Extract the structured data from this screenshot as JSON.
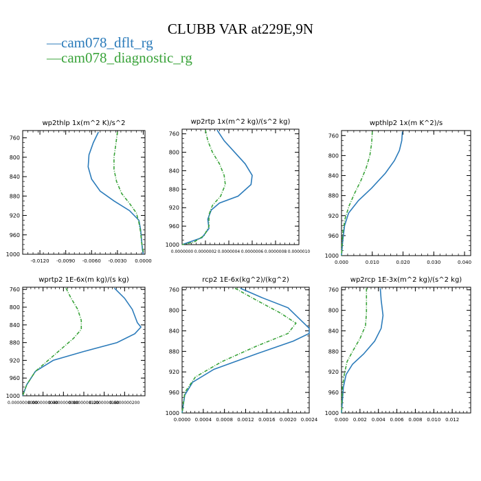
{
  "title": "CLUBB VAR at229E,9N",
  "legend": [
    {
      "name": "cam078_dflt_rg",
      "color": "#2b7bba"
    },
    {
      "name": "cam078_diagnostic_rg",
      "color": "#3aa33a"
    }
  ],
  "chart_data": [
    {
      "type": "line",
      "title": "wp2thlp  1x(m^2 K)/s^2",
      "ylim": [
        1000,
        745
      ],
      "yticks": [
        760,
        800,
        840,
        880,
        920,
        960,
        1000
      ],
      "xlim": [
        -0.014,
        0.0002
      ],
      "xticks": [
        "-0.0120",
        "-0.0090",
        "-0.0060",
        "-0.0030",
        "0.0000"
      ],
      "xtick_values": [
        -0.012,
        -0.009,
        -0.006,
        -0.003,
        0.0
      ],
      "series": [
        {
          "name": "cam078_dflt_rg",
          "points": [
            [
              -0.0052,
              748
            ],
            [
              -0.0058,
              770
            ],
            [
              -0.0063,
              795
            ],
            [
              -0.0064,
              820
            ],
            [
              -0.006,
              845
            ],
            [
              -0.005,
              870
            ],
            [
              -0.0034,
              890
            ],
            [
              -0.0016,
              910
            ],
            [
              -0.0005,
              930
            ],
            [
              -0.0003,
              950
            ],
            [
              -0.0002,
              970
            ],
            [
              -0.0001,
              990
            ],
            [
              0.0,
              1000
            ]
          ]
        },
        {
          "name": "cam078_diagnostic_rg",
          "points": [
            [
              -0.003,
              748
            ],
            [
              -0.0032,
              775
            ],
            [
              -0.0034,
              800
            ],
            [
              -0.0034,
              825
            ],
            [
              -0.0031,
              850
            ],
            [
              -0.0025,
              875
            ],
            [
              -0.0016,
              895
            ],
            [
              -0.0008,
              915
            ],
            [
              -0.0005,
              935
            ],
            [
              -0.0003,
              955
            ],
            [
              -0.0002,
              975
            ],
            [
              0.0,
              995
            ]
          ]
        }
      ]
    },
    {
      "type": "line",
      "title": "wp2rtp  1x(m^2 kg)/(s^2 kg)",
      "ylim": [
        1000,
        750
      ],
      "yticks": [
        760,
        800,
        840,
        880,
        920,
        960,
        1000
      ],
      "xlim": [
        0.0,
        1e-06
      ],
      "xticks": [
        "0.0000000",
        "0.0000002",
        "0.0000004",
        "0.0000006",
        "0.0000008",
        "0.0000010"
      ],
      "xtick_values": [
        0.0,
        2e-07,
        4e-07,
        6e-07,
        8e-07,
        1e-06
      ],
      "series": [
        {
          "name": "cam078_dflt_rg",
          "points": [
            [
              3e-07,
              752
            ],
            [
              3.6e-07,
              775
            ],
            [
              4.5e-07,
              800
            ],
            [
              5.4e-07,
              825
            ],
            [
              6e-07,
              850
            ],
            [
              5.9e-07,
              870
            ],
            [
              4.8e-07,
              895
            ],
            [
              3.2e-07,
              910
            ],
            [
              2.5e-07,
              925
            ],
            [
              2.2e-07,
              945
            ],
            [
              2.3e-07,
              965
            ],
            [
              1.7e-07,
              985
            ],
            [
              0.0,
              1000
            ]
          ]
        },
        {
          "name": "cam078_diagnostic_rg",
          "points": [
            [
              2e-07,
              752
            ],
            [
              2.2e-07,
              775
            ],
            [
              2.6e-07,
              800
            ],
            [
              3.2e-07,
              825
            ],
            [
              3.6e-07,
              850
            ],
            [
              3.7e-07,
              870
            ],
            [
              3.3e-07,
              895
            ],
            [
              2.6e-07,
              915
            ],
            [
              2.3e-07,
              935
            ],
            [
              2.3e-07,
              960
            ],
            [
              1.9e-07,
              980
            ],
            [
              1e-07,
              995
            ],
            [
              0.0,
              1000
            ]
          ]
        }
      ]
    },
    {
      "type": "line",
      "title": "wpthlp2  1x(m K^2)/s",
      "ylim": [
        1000,
        750
      ],
      "yticks": [
        760,
        800,
        840,
        880,
        920,
        960,
        1000
      ],
      "xlim": [
        0.0,
        0.042
      ],
      "xticks": [
        "0.000",
        "0.010",
        "0.020",
        "0.030",
        "0.040"
      ],
      "xtick_values": [
        0.0,
        0.01,
        0.02,
        0.03,
        0.04
      ],
      "series": [
        {
          "name": "cam078_dflt_rg",
          "points": [
            [
              0.0198,
              752
            ],
            [
              0.0196,
              770
            ],
            [
              0.0188,
              790
            ],
            [
              0.0172,
              810
            ],
            [
              0.0143,
              835
            ],
            [
              0.0098,
              865
            ],
            [
              0.0055,
              890
            ],
            [
              0.0023,
              915
            ],
            [
              0.001,
              940
            ],
            [
              0.0004,
              970
            ],
            [
              0.0,
              1000
            ]
          ]
        },
        {
          "name": "cam078_diagnostic_rg",
          "points": [
            [
              0.01,
              752
            ],
            [
              0.0098,
              775
            ],
            [
              0.0092,
              800
            ],
            [
              0.008,
              825
            ],
            [
              0.0063,
              850
            ],
            [
              0.0043,
              875
            ],
            [
              0.0025,
              900
            ],
            [
              0.0012,
              925
            ],
            [
              0.0005,
              950
            ],
            [
              0.0002,
              975
            ],
            [
              0.0,
              1000
            ]
          ]
        }
      ]
    },
    {
      "type": "line",
      "title": "wprtp2  1E-6x(m kg)/(s kg)",
      "ylim": [
        1000,
        755
      ],
      "yticks": [
        760,
        800,
        840,
        880,
        920,
        960,
        1000
      ],
      "xlim": [
        0.0,
        2.4e-08
      ],
      "xticks": [
        "0.0000000000",
        "0.0000000040",
        "0.0000000080",
        "0.0000000120",
        "0.0000000160",
        "0.0000000200"
      ],
      "xtick_values": [
        0.0,
        4e-09,
        8e-09,
        1.2e-08,
        1.6e-08,
        2e-08
      ],
      "series": [
        {
          "name": "cam078_dflt_rg",
          "points": [
            [
              1.8e-08,
              757
            ],
            [
              2e-08,
              780
            ],
            [
              2.15e-08,
              805
            ],
            [
              2.25e-08,
              835
            ],
            [
              2.32e-08,
              845
            ],
            [
              2.2e-08,
              860
            ],
            [
              1.85e-08,
              880
            ],
            [
              1.2e-08,
              900
            ],
            [
              6e-09,
              920
            ],
            [
              2.5e-09,
              945
            ],
            [
              8e-10,
              975
            ],
            [
              0.0,
              1000
            ]
          ]
        },
        {
          "name": "cam078_diagnostic_rg",
          "points": [
            [
              8.5e-09,
              757
            ],
            [
              9.5e-09,
              780
            ],
            [
              1.08e-08,
              805
            ],
            [
              1.15e-08,
              830
            ],
            [
              1.15e-08,
              850
            ],
            [
              1e-08,
              870
            ],
            [
              7.5e-09,
              895
            ],
            [
              5e-09,
              920
            ],
            [
              2.5e-09,
              945
            ],
            [
              8e-10,
              975
            ],
            [
              0.0,
              1000
            ]
          ]
        }
      ]
    },
    {
      "type": "line",
      "title": "rcp2  1E-6x(kg^2)/(kg^2)",
      "ylim": [
        1000,
        755
      ],
      "yticks": [
        760,
        800,
        840,
        880,
        920,
        960,
        1000
      ],
      "xlim": [
        0.0,
        0.0024
      ],
      "xticks": [
        "0.0000",
        "0.0004",
        "0.0008",
        "0.0012",
        "0.0016",
        "0.0020",
        "0.0024"
      ],
      "xtick_values": [
        0.0,
        0.0004,
        0.0008,
        0.0012,
        0.0016,
        0.002,
        0.0024
      ],
      "series": [
        {
          "name": "cam078_dflt_rg",
          "points": [
            [
              0.0011,
              757
            ],
            [
              0.0015,
              775
            ],
            [
              0.002,
              795
            ],
            [
              0.0024,
              835
            ],
            [
              0.0024,
              845
            ],
            [
              0.0021,
              860
            ],
            [
              0.0014,
              885
            ],
            [
              0.0006,
              915
            ],
            [
              0.0002,
              940
            ],
            [
              5e-05,
              965
            ],
            [
              0.0,
              1000
            ]
          ]
        },
        {
          "name": "cam078_diagnostic_rg",
          "points": [
            [
              0.001,
              757
            ],
            [
              0.0014,
              780
            ],
            [
              0.00185,
              805
            ],
            [
              0.00215,
              825
            ],
            [
              0.002,
              845
            ],
            [
              0.0014,
              870
            ],
            [
              0.00075,
              900
            ],
            [
              0.00025,
              930
            ],
            [
              5e-05,
              960
            ],
            [
              0.0,
              1000
            ]
          ]
        }
      ]
    },
    {
      "type": "line",
      "title": "wp2rcp  1E-3x(m^2 kg)/(s^2 kg)",
      "ylim": [
        1000,
        755
      ],
      "yticks": [
        760,
        800,
        840,
        880,
        920,
        960,
        1000
      ],
      "xlim": [
        0.0,
        0.014
      ],
      "xticks": [
        "0.000",
        "0.002",
        "0.004",
        "0.006",
        "0.008",
        "0.010",
        "0.012"
      ],
      "xtick_values": [
        0.0,
        0.002,
        0.004,
        0.006,
        0.008,
        0.01,
        0.012
      ],
      "series": [
        {
          "name": "cam078_dflt_rg",
          "points": [
            [
              0.0042,
              757
            ],
            [
              0.0043,
              780
            ],
            [
              0.0045,
              810
            ],
            [
              0.0043,
              835
            ],
            [
              0.0036,
              860
            ],
            [
              0.0024,
              885
            ],
            [
              0.0012,
              905
            ],
            [
              0.0005,
              925
            ],
            [
              0.0002,
              950
            ],
            [
              0.0,
              1000
            ]
          ]
        },
        {
          "name": "cam078_diagnostic_rg",
          "points": [
            [
              0.0027,
              757
            ],
            [
              0.0027,
              780
            ],
            [
              0.0027,
              805
            ],
            [
              0.0026,
              830
            ],
            [
              0.002,
              855
            ],
            [
              0.0012,
              880
            ],
            [
              0.0006,
              900
            ],
            [
              0.0003,
              925
            ],
            [
              0.0001,
              950
            ],
            [
              0.0,
              1000
            ]
          ]
        }
      ]
    }
  ]
}
